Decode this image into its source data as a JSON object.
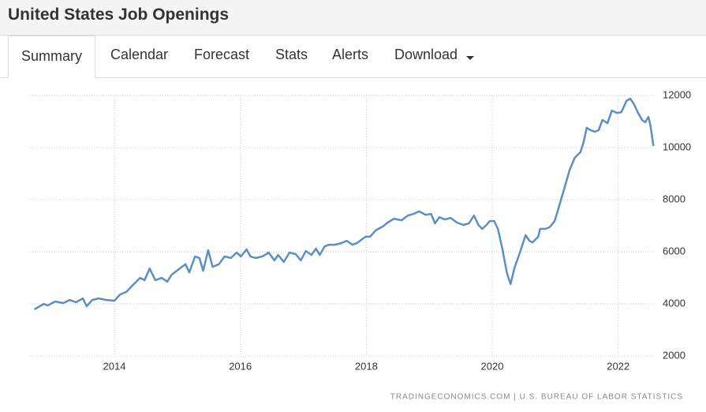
{
  "header": {
    "title": "United States Job Openings"
  },
  "tabs": [
    "Summary",
    "Calendar",
    "Forecast",
    "Stats",
    "Alerts",
    "Download"
  ],
  "chart_data": {
    "type": "line",
    "source": "TRADINGECONOMICS.COM | U.S. BUREAU OF LABOR STATISTICS",
    "x": [
      2012.73,
      2012.88,
      2012.94,
      2013.06,
      2013.19,
      2013.29,
      2013.39,
      2013.5,
      2013.56,
      2013.65,
      2013.75,
      2013.88,
      2014.0,
      2014.09,
      2014.19,
      2014.31,
      2014.41,
      2014.48,
      2014.56,
      2014.65,
      2014.75,
      2014.84,
      2014.91,
      2015.04,
      2015.13,
      2015.19,
      2015.28,
      2015.35,
      2015.41,
      2015.49,
      2015.56,
      2015.66,
      2015.75,
      2015.85,
      2015.94,
      2016.01,
      2016.1,
      2016.16,
      2016.25,
      2016.35,
      2016.45,
      2016.54,
      2016.6,
      2016.69,
      2016.78,
      2016.88,
      2016.96,
      2017.04,
      2017.13,
      2017.2,
      2017.26,
      2017.34,
      2017.41,
      2017.5,
      2017.6,
      2017.69,
      2017.78,
      2017.85,
      2017.94,
      2017.99,
      2018.06,
      2018.15,
      2018.26,
      2018.34,
      2018.44,
      2018.56,
      2018.66,
      2018.75,
      2018.84,
      2018.94,
      2019.03,
      2019.09,
      2019.16,
      2019.25,
      2019.34,
      2019.44,
      2019.54,
      2019.63,
      2019.71,
      2019.78,
      2019.84,
      2019.91,
      2019.96,
      2020.03,
      2020.09,
      2020.16,
      2020.23,
      2020.29,
      2020.35,
      2020.44,
      2020.53,
      2020.59,
      2020.64,
      2020.73,
      2020.76,
      2020.84,
      2020.91,
      2020.99,
      2021.06,
      2021.14,
      2021.23,
      2021.31,
      2021.4,
      2021.45,
      2021.5,
      2021.56,
      2021.63,
      2021.69,
      2021.75,
      2021.83,
      2021.9,
      2021.98,
      2022.05,
      2022.13,
      2022.19,
      2022.25,
      2022.31,
      2022.38,
      2022.43,
      2022.48,
      2022.51,
      2022.56
    ],
    "values": [
      3790,
      4000,
      3940,
      4090,
      4030,
      4150,
      4060,
      4210,
      3910,
      4150,
      4210,
      4150,
      4120,
      4360,
      4460,
      4760,
      5000,
      4910,
      5360,
      4910,
      5000,
      4850,
      5120,
      5360,
      5520,
      5210,
      5820,
      5760,
      5270,
      6060,
      5420,
      5520,
      5820,
      5760,
      5970,
      5820,
      6090,
      5820,
      5760,
      5820,
      5970,
      5670,
      5880,
      5610,
      5970,
      5910,
      5670,
      6030,
      5880,
      6120,
      5880,
      6210,
      6270,
      6270,
      6330,
      6420,
      6270,
      6330,
      6490,
      6580,
      6580,
      6820,
      6970,
      7120,
      7270,
      7210,
      7390,
      7450,
      7550,
      7420,
      7450,
      7090,
      7330,
      7240,
      7300,
      7120,
      7030,
      7090,
      7390,
      7030,
      6880,
      7030,
      7180,
      7180,
      6880,
      6120,
      5210,
      4760,
      5360,
      5970,
      6640,
      6420,
      6360,
      6580,
      6880,
      6880,
      6940,
      7180,
      7730,
      8390,
      9150,
      9610,
      9820,
      10210,
      10760,
      10670,
      10610,
      10670,
      11060,
      10940,
      11420,
      11330,
      11360,
      11790,
      11880,
      11670,
      11360,
      11060,
      10970,
      11180,
      10880,
      10060
    ],
    "color": "#5b8fc4",
    "xlim": [
      2012.66,
      2022.58
    ],
    "xticks": [
      2014,
      2016,
      2018,
      2020,
      2022
    ],
    "ylim": [
      2000,
      12000
    ],
    "yticks": [
      2000,
      4000,
      6000,
      8000,
      10000,
      12000
    ],
    "grid": true
  }
}
